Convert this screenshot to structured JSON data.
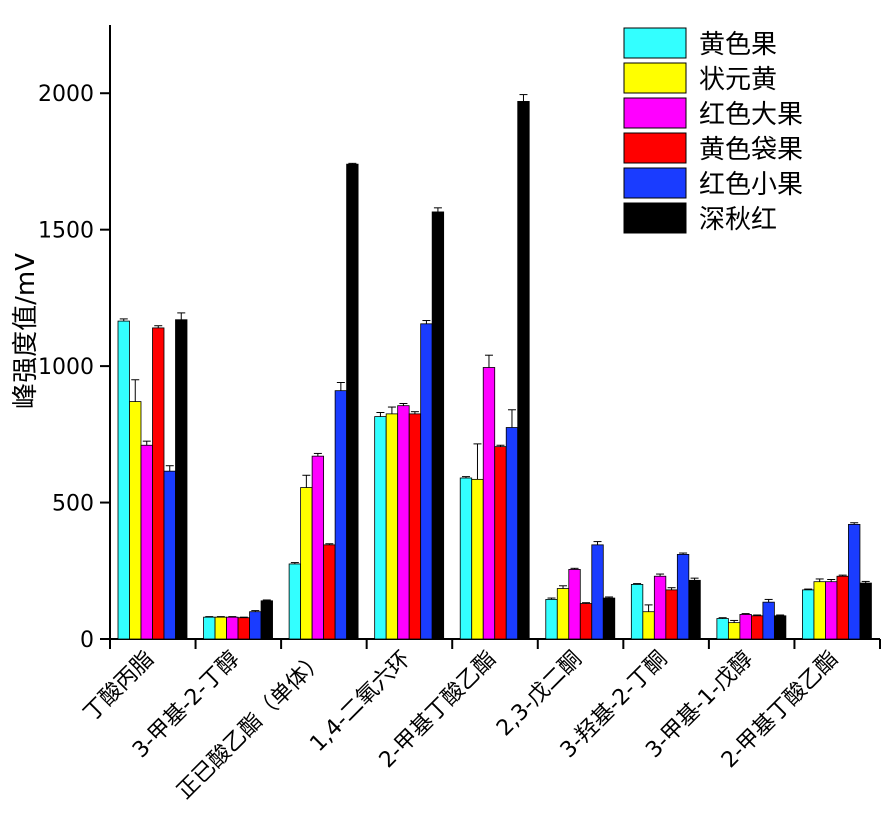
{
  "chart_data": {
    "type": "bar",
    "title": "",
    "xlabel": "",
    "ylabel": "峰强度值/mV",
    "ylim": [
      0,
      2250
    ],
    "yticks": [
      0,
      500,
      1000,
      1500,
      2000
    ],
    "grid": false,
    "legend_position": "top-right",
    "categories": [
      "丁酸丙脂",
      "3-甲基-2-丁醇",
      "正已酸乙酯（单体）",
      "1,4-二氧六环",
      "2-甲基丁酸乙酯",
      "2,3-戊二酮",
      "3-羟基-2-丁酮",
      "3-甲基-1-戊醇",
      "2-甲基丁酸乙酯"
    ],
    "series": [
      {
        "name": "黄色果",
        "color": "#33ffff",
        "values": [
          1165,
          80,
          275,
          815,
          590,
          145,
          200,
          75,
          180
        ],
        "errors": [
          8,
          2,
          5,
          15,
          5,
          5,
          3,
          3,
          3
        ]
      },
      {
        "name": "状元黄",
        "color": "#ffff00",
        "values": [
          870,
          80,
          555,
          825,
          585,
          185,
          100,
          60,
          210
        ],
        "errors": [
          80,
          2,
          45,
          25,
          130,
          10,
          25,
          8,
          10
        ]
      },
      {
        "name": "红色大果",
        "color": "#ff00ff",
        "values": [
          710,
          80,
          670,
          855,
          995,
          255,
          230,
          90,
          210
        ],
        "errors": [
          15,
          2,
          10,
          8,
          45,
          4,
          8,
          3,
          8
        ]
      },
      {
        "name": "黄色袋果",
        "color": "#ff0000",
        "values": [
          1140,
          78,
          345,
          825,
          705,
          130,
          180,
          85,
          230
        ],
        "errors": [
          8,
          2,
          4,
          8,
          5,
          3,
          8,
          3,
          4
        ]
      },
      {
        "name": "红色小果",
        "color": "#1a3cff",
        "values": [
          615,
          100,
          910,
          1155,
          775,
          345,
          310,
          135,
          420
        ],
        "errors": [
          20,
          4,
          30,
          12,
          65,
          12,
          5,
          10,
          6
        ]
      },
      {
        "name": "深秋红",
        "color": "#000000",
        "values": [
          1170,
          140,
          1740,
          1565,
          1970,
          150,
          215,
          85,
          205
        ],
        "errors": [
          25,
          3,
          3,
          15,
          25,
          4,
          8,
          3,
          6
        ]
      }
    ]
  }
}
